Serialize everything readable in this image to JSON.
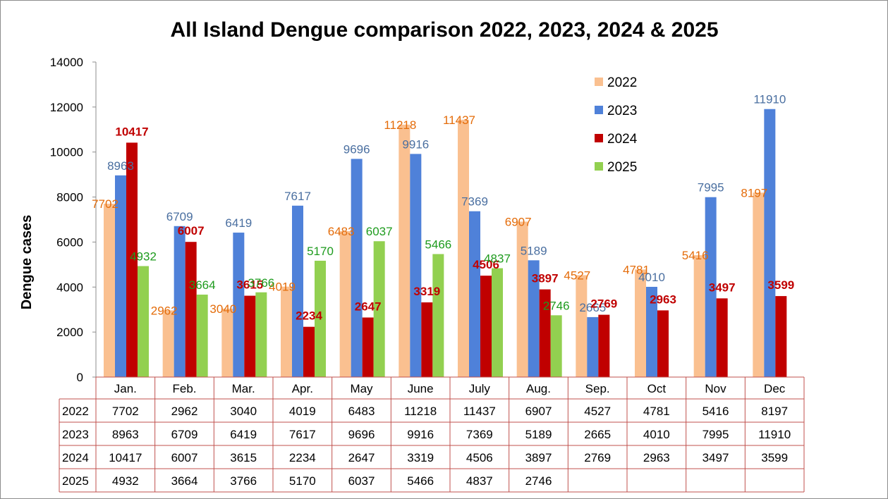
{
  "chart_data": {
    "type": "bar",
    "title": "All Island Dengue comparison 2022, 2023, 2024 & 2025",
    "ylabel": "Dengue cases",
    "xlabel": "",
    "ylim": [
      0,
      14000
    ],
    "yticks": [
      "0",
      "2000",
      "4000",
      "6000",
      "8000",
      "10000",
      "12000",
      "14000"
    ],
    "categories": [
      "Jan.",
      "Feb.",
      "Mar.",
      "Apr.",
      "May",
      "June",
      "July",
      "Aug.",
      "Sep.",
      "Oct",
      "Nov",
      "Dec"
    ],
    "legend_position": "top-right",
    "grid": false,
    "series": [
      {
        "name": "2022",
        "color": "#FAC090",
        "label_color": "#E46C0A",
        "label_bold": false,
        "values": [
          7702,
          2962,
          3040,
          4019,
          6483,
          11218,
          11437,
          6907,
          4527,
          4781,
          5416,
          8197
        ],
        "labels": [
          "7702",
          "2962",
          "3040",
          "4019",
          "6483",
          "11218",
          "11437",
          "6907",
          "4527",
          "4781",
          "5416",
          "8197"
        ]
      },
      {
        "name": "2023",
        "color": "#4F81D9",
        "label_color": "#4A6FA0",
        "label_bold": false,
        "values": [
          8963,
          6709,
          6419,
          7617,
          9696,
          9916,
          7369,
          5189,
          2665,
          4010,
          7995,
          11910
        ],
        "labels": [
          "8963",
          "6709",
          "6419",
          "7617",
          "9696",
          "9916",
          "7369",
          "5189",
          "2665",
          "4010",
          "7995",
          "11910"
        ]
      },
      {
        "name": "2024",
        "color": "#C00000",
        "label_color": "#C00000",
        "label_bold": true,
        "values": [
          10417,
          6007,
          3615,
          2234,
          2647,
          3319,
          4506,
          3897,
          2769,
          2963,
          3497,
          3599
        ],
        "labels": [
          "10417",
          "6007",
          "3615",
          "2234",
          "2647",
          "3319",
          "4506",
          "3897",
          "2769",
          "2963",
          "3497",
          "3599"
        ]
      },
      {
        "name": "2025",
        "color": "#92D050",
        "label_color": "#1E9B1E",
        "label_bold": false,
        "values": [
          4932,
          3664,
          3766,
          5170,
          6037,
          5466,
          4837,
          2746,
          null,
          null,
          null,
          null
        ],
        "labels": [
          "4932",
          "3664",
          "3766",
          "5170",
          "6037",
          "5466",
          "4837",
          "2746",
          "",
          "",
          "",
          ""
        ]
      }
    ]
  }
}
